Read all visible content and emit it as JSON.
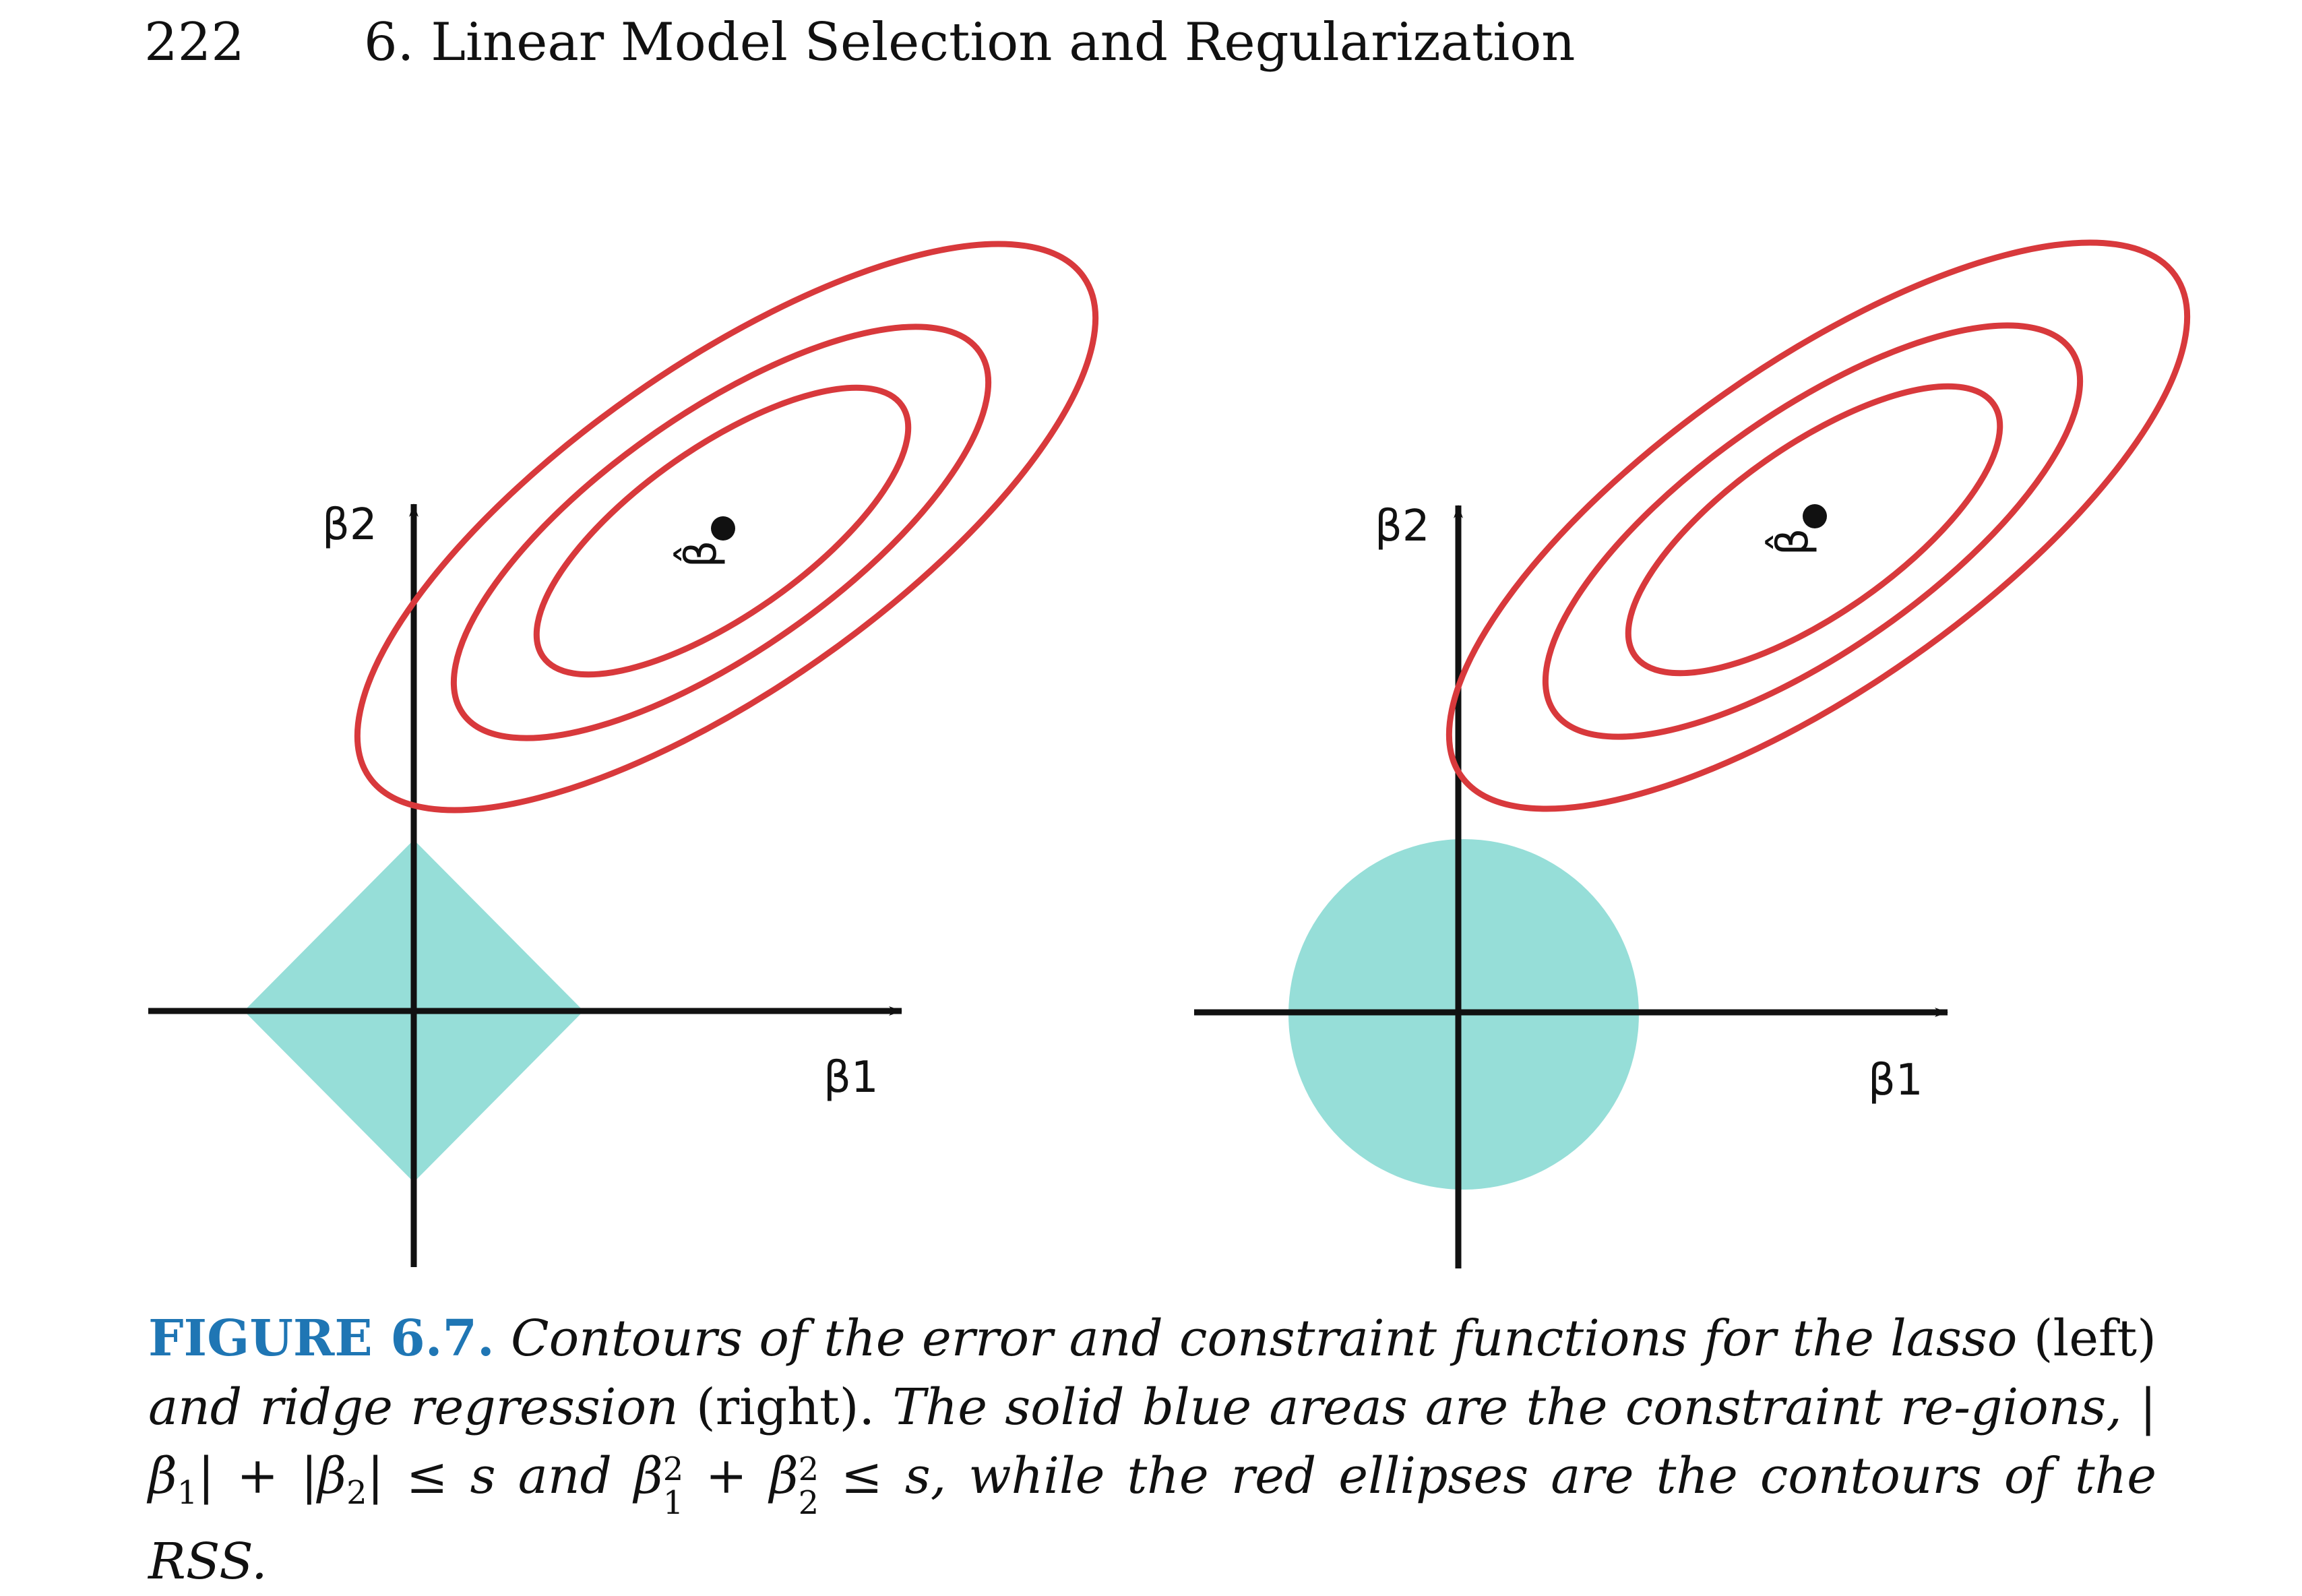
{
  "header": {
    "page_number": "222",
    "chapter_title": "6. Linear Model Selection and Regularization"
  },
  "figure": {
    "panels": [
      {
        "name": "lasso",
        "constraint_shape": "diamond",
        "y_axis_label": "β2",
        "x_axis_label": "β1",
        "estimate_label": "β̂"
      },
      {
        "name": "ridge",
        "constraint_shape": "disk",
        "y_axis_label": "β2",
        "x_axis_label": "β1",
        "estimate_label": "β̂"
      }
    ],
    "colors": {
      "contour": "#d8393c",
      "constraint_region": "#96ded8",
      "axis": "#111111",
      "caption_label": "#1f76b4"
    }
  },
  "caption": {
    "label": "FIGURE 6.7.",
    "p1": "Contours of the error and constraint functions for the lasso",
    "p2": "(left)",
    "p3": "and ridge regression",
    "p4": "(right).",
    "p5": "The solid blue areas are the constraint re-gions,",
    "p6": "|β",
    "p7": "1",
    "p8": "| + |β",
    "p9": "2",
    "p10": "| ≤ s",
    "p11": "and",
    "p12": "β",
    "p13": "2",
    "p14": "1",
    "p15": "+ β",
    "p16": "2",
    "p17": "2",
    "p18": "≤ s,",
    "p19": "while the red ellipses are the contours of the RSS."
  }
}
